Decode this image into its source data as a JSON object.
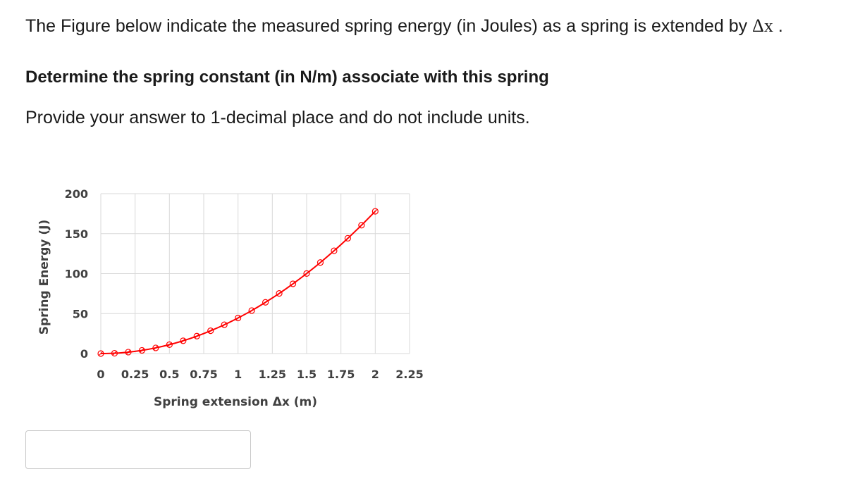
{
  "question": {
    "intro_text": "The Figure below indicate the measured spring energy (in Joules) as a spring is extended by",
    "delta_symbol": "Δ",
    "delta_variable": "x",
    "intro_end": ".",
    "task": "Determine the spring constant (in N/m) associate with this spring",
    "instruction": "Provide your answer to 1-decimal place and do not include units."
  },
  "answer": {
    "value": "",
    "placeholder": ""
  },
  "chart_data": {
    "type": "scatter",
    "title": "",
    "xlabel": "Spring extension Δx (m)",
    "ylabel": "Spring Energy (J)",
    "xlim": [
      0,
      2.25
    ],
    "ylim": [
      0,
      200
    ],
    "xticks": [
      0,
      0.25,
      0.5,
      0.75,
      1,
      1.25,
      1.5,
      1.75,
      2,
      2.25
    ],
    "xtick_labels": [
      "0",
      "0.25",
      "0.5",
      "0.75",
      "1",
      "1.25",
      "1.5",
      "1.75",
      "2",
      "2.25"
    ],
    "yticks": [
      0,
      50,
      100,
      150,
      200
    ],
    "ytick_labels": [
      "0",
      "50",
      "100",
      "150",
      "200"
    ],
    "grid": true,
    "legend": "none",
    "series": [
      {
        "color": "#ff0000",
        "marker": "open-circle-slash",
        "line": "smooth",
        "x": [
          0,
          0.1,
          0.2,
          0.3,
          0.4,
          0.5,
          0.6,
          0.7,
          0.8,
          0.9,
          1.0,
          1.1,
          1.2,
          1.3,
          1.4,
          1.5,
          1.6,
          1.7,
          1.8,
          1.9,
          2.0
        ],
        "y": [
          0,
          0.4,
          1.8,
          4.0,
          7.1,
          11.1,
          16.0,
          21.8,
          28.5,
          36.0,
          44.5,
          53.8,
          64.1,
          75.2,
          87.2,
          100.1,
          113.9,
          128.6,
          144.2,
          160.6,
          178.0
        ]
      }
    ]
  }
}
